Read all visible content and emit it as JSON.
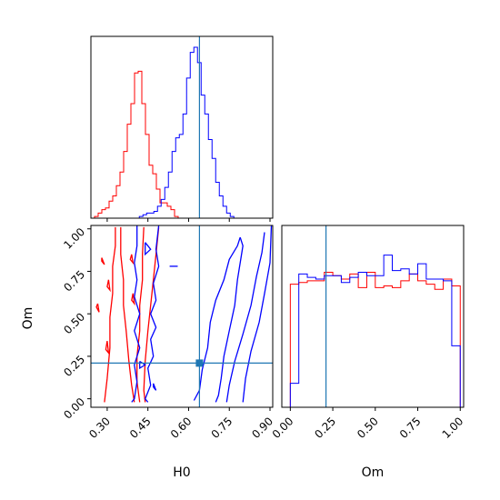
{
  "chart_data": [
    {
      "panel": "H0 marginal",
      "type": "histogram",
      "xlim": [
        0.24,
        0.91
      ],
      "x_ticks": [
        "0.30",
        "0.45",
        "0.60",
        "0.75",
        "0.90"
      ],
      "truth_x": 0.64,
      "series": [
        {
          "color": "#ff0000",
          "bin_start": 0.24,
          "bin_width": 0.0134,
          "counts": [
            0,
            0.01,
            0.03,
            0.05,
            0.06,
            0.1,
            0.13,
            0.19,
            0.27,
            0.39,
            0.55,
            0.67,
            0.85,
            0.86,
            0.67,
            0.49,
            0.31,
            0.26,
            0.17,
            0.09,
            0.09,
            0.07,
            0.05,
            0.01,
            0
          ]
        },
        {
          "color": "#0000ff",
          "bin_start": 0.405,
          "bin_width": 0.0134,
          "counts": [
            0,
            0.01,
            0.02,
            0.03,
            0.03,
            0.04,
            0.07,
            0.11,
            0.18,
            0.27,
            0.39,
            0.47,
            0.49,
            0.61,
            0.82,
            0.97,
            1.0,
            0.91,
            0.72,
            0.61,
            0.46,
            0.35,
            0.21,
            0.13,
            0.07,
            0.03,
            0.01,
            0
          ]
        }
      ]
    },
    {
      "panel": "Om marginal",
      "type": "histogram",
      "xlim": [
        -0.05,
        1.02
      ],
      "x_ticks": [
        "0.00",
        "0.25",
        "0.50",
        "0.75",
        "1.00"
      ],
      "truth_x": 0.21,
      "series": [
        {
          "color": "#ff0000",
          "bin_start": 0.0,
          "bin_width": 0.05,
          "counts": [
            0.72,
            0.73,
            0.74,
            0.74,
            0.79,
            0.77,
            0.75,
            0.78,
            0.7,
            0.79,
            0.7,
            0.71,
            0.7,
            0.74,
            0.78,
            0.74,
            0.72,
            0.69,
            0.75,
            0.71
          ]
        },
        {
          "color": "#0000ff",
          "bin_start": 0.0,
          "bin_width": 0.05,
          "counts": [
            0.14,
            0.78,
            0.76,
            0.75,
            0.77,
            0.77,
            0.73,
            0.76,
            0.79,
            0.77,
            0.77,
            0.89,
            0.8,
            0.81,
            0.78,
            0.84,
            0.75,
            0.75,
            0.74,
            0.36
          ]
        }
      ]
    },
    {
      "panel": "H0 vs Om",
      "type": "contour",
      "xlabel": "H0",
      "ylabel": "Om",
      "xlim": [
        0.24,
        0.91
      ],
      "ylim": [
        -0.05,
        1.02
      ],
      "x_ticks": [
        "0.30",
        "0.45",
        "0.60",
        "0.75",
        "0.90"
      ],
      "y_ticks": [
        "0.00",
        "0.25",
        "0.50",
        "0.75",
        "1.00"
      ],
      "truth": [
        0.64,
        0.21
      ],
      "series": [
        {
          "color": "#ff0000",
          "contours": [
            [
              [
                0.29,
                -0.02
              ],
              [
                0.3,
                0.12
              ],
              [
                0.31,
                0.3
              ],
              [
                0.31,
                0.48
              ],
              [
                0.32,
                0.62
              ],
              [
                0.32,
                0.78
              ],
              [
                0.33,
                0.9
              ],
              [
                0.33,
                1.01
              ]
            ],
            [
              [
                0.35,
                1.01
              ],
              [
                0.35,
                0.85
              ],
              [
                0.36,
                0.7
              ],
              [
                0.36,
                0.55
              ],
              [
                0.37,
                0.4
              ],
              [
                0.38,
                0.22
              ],
              [
                0.39,
                0.08
              ],
              [
                0.4,
                -0.02
              ]
            ],
            [
              [
                0.435,
                1.01
              ],
              [
                0.43,
                0.85
              ],
              [
                0.43,
                0.7
              ],
              [
                0.42,
                0.55
              ],
              [
                0.42,
                0.4
              ],
              [
                0.41,
                0.25
              ],
              [
                0.41,
                0.1
              ],
              [
                0.42,
                -0.02
              ]
            ],
            [
              [
                0.49,
                1.01
              ],
              [
                0.48,
                0.85
              ],
              [
                0.47,
                0.7
              ],
              [
                0.46,
                0.55
              ],
              [
                0.45,
                0.4
              ],
              [
                0.44,
                0.22
              ],
              [
                0.435,
                0.05
              ],
              [
                0.44,
                -0.02
              ]
            ],
            [
              [
                0.265,
                0.56
              ],
              [
                0.27,
                0.51
              ],
              [
                0.26,
                0.54
              ],
              [
                0.265,
                0.56
              ]
            ],
            [
              [
                0.28,
                0.83
              ],
              [
                0.29,
                0.79
              ],
              [
                0.28,
                0.81
              ],
              [
                0.28,
                0.83
              ]
            ],
            [
              [
                0.305,
                0.7
              ],
              [
                0.31,
                0.64
              ],
              [
                0.3,
                0.66
              ],
              [
                0.305,
                0.7
              ]
            ],
            [
              [
                0.3,
                0.34
              ],
              [
                0.305,
                0.27
              ],
              [
                0.295,
                0.29
              ],
              [
                0.3,
                0.34
              ]
            ],
            [
              [
                0.39,
                0.85
              ],
              [
                0.395,
                0.8
              ],
              [
                0.385,
                0.82
              ],
              [
                0.39,
                0.85
              ]
            ],
            [
              [
                0.395,
                0.62
              ],
              [
                0.4,
                0.56
              ],
              [
                0.39,
                0.58
              ],
              [
                0.395,
                0.62
              ]
            ]
          ]
        },
        {
          "color": "#0000ff",
          "contours": [
            [
              [
                0.41,
                1.02
              ],
              [
                0.41,
                0.9
              ],
              [
                0.4,
                0.8
              ],
              [
                0.41,
                0.7
              ],
              [
                0.4,
                0.6
              ],
              [
                0.42,
                0.5
              ],
              [
                0.4,
                0.4
              ],
              [
                0.42,
                0.3
              ],
              [
                0.4,
                0.2
              ],
              [
                0.41,
                0.1
              ],
              [
                0.4,
                0.0
              ],
              [
                0.39,
                -0.02
              ]
            ],
            [
              [
                0.49,
                1.02
              ],
              [
                0.48,
                0.88
              ],
              [
                0.49,
                0.78
              ],
              [
                0.47,
                0.68
              ],
              [
                0.48,
                0.58
              ],
              [
                0.46,
                0.5
              ],
              [
                0.48,
                0.42
              ],
              [
                0.46,
                0.35
              ],
              [
                0.47,
                0.25
              ],
              [
                0.45,
                0.18
              ],
              [
                0.46,
                0.08
              ],
              [
                0.44,
                0.0
              ],
              [
                0.45,
                -0.02
              ]
            ],
            [
              [
                0.62,
                -0.01
              ],
              [
                0.64,
                0.05
              ],
              [
                0.65,
                0.17
              ],
              [
                0.67,
                0.3
              ],
              [
                0.68,
                0.45
              ],
              [
                0.7,
                0.58
              ],
              [
                0.73,
                0.7
              ],
              [
                0.75,
                0.82
              ],
              [
                0.78,
                0.9
              ],
              [
                0.79,
                0.95
              ]
            ],
            [
              [
                0.79,
                0.95
              ],
              [
                0.8,
                0.9
              ],
              [
                0.79,
                0.8
              ],
              [
                0.78,
                0.7
              ],
              [
                0.77,
                0.55
              ],
              [
                0.75,
                0.4
              ],
              [
                0.73,
                0.25
              ],
              [
                0.72,
                0.12
              ],
              [
                0.71,
                0.02
              ],
              [
                0.7,
                -0.02
              ]
            ],
            [
              [
                0.88,
                0.98
              ],
              [
                0.87,
                0.86
              ],
              [
                0.85,
                0.72
              ],
              [
                0.83,
                0.55
              ],
              [
                0.8,
                0.38
              ],
              [
                0.77,
                0.22
              ],
              [
                0.75,
                0.08
              ],
              [
                0.74,
                -0.02
              ]
            ],
            [
              [
                0.905,
                1.02
              ],
              [
                0.9,
                0.8
              ],
              [
                0.88,
                0.62
              ],
              [
                0.86,
                0.45
              ],
              [
                0.83,
                0.28
              ],
              [
                0.81,
                0.12
              ],
              [
                0.8,
                -0.02
              ]
            ],
            [
              [
                0.42,
                0.22
              ],
              [
                0.44,
                0.2
              ],
              [
                0.42,
                0.18
              ],
              [
                0.42,
                0.22
              ]
            ],
            [
              [
                0.47,
                0.09
              ],
              [
                0.48,
                0.05
              ],
              [
                0.47,
                0.07
              ],
              [
                0.47,
                0.09
              ]
            ],
            [
              [
                0.44,
                0.92
              ],
              [
                0.46,
                0.88
              ],
              [
                0.44,
                0.85
              ],
              [
                0.44,
                0.92
              ]
            ],
            [
              [
                0.53,
                0.78
              ],
              [
                0.56,
                0.78
              ]
            ]
          ]
        }
      ]
    }
  ]
}
